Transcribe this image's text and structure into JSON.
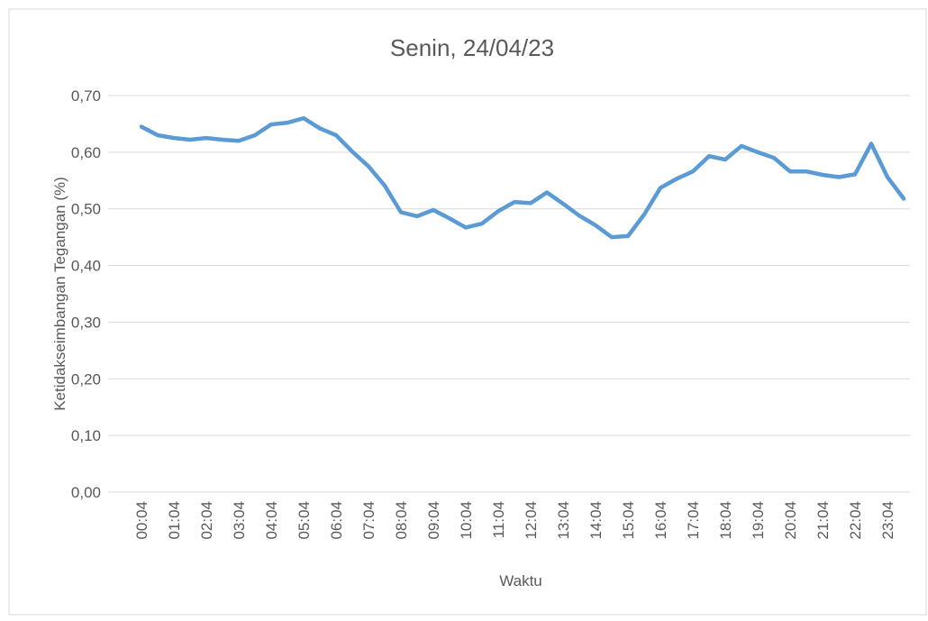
{
  "chart_data": {
    "type": "line",
    "title": "Senin, 24/04/23",
    "x_label": "Waktu",
    "y_label": "Ketidakseimbangan Tegangan (%)",
    "categories": [
      "00:04",
      null,
      "01:04",
      null,
      "02:04",
      null,
      "03:04",
      null,
      "04:04",
      null,
      "05:04",
      null,
      "06:04",
      null,
      "07:04",
      null,
      "08:04",
      null,
      "09:04",
      null,
      "10:04",
      null,
      "11:04",
      null,
      "12:04",
      null,
      "13:04",
      null,
      "14:04",
      null,
      "15:04",
      null,
      "16:04",
      null,
      "17:04",
      null,
      "18:04",
      null,
      "19:04",
      null,
      "20:04",
      null,
      "21:04",
      null,
      "22:04",
      null,
      "23:04",
      null
    ],
    "series": [
      {
        "name": "Ketidakseimbangan Tegangan",
        "color": "#5b9bd5",
        "values": [
          0.645,
          0.63,
          0.625,
          0.622,
          0.625,
          0.622,
          0.62,
          0.63,
          0.649,
          0.652,
          0.66,
          0.642,
          0.63,
          0.601,
          0.575,
          0.541,
          0.494,
          0.487,
          0.498,
          0.483,
          0.467,
          0.474,
          0.496,
          0.512,
          0.51,
          0.529,
          0.509,
          0.488,
          0.471,
          0.45,
          0.452,
          0.49,
          0.537,
          0.553,
          0.566,
          0.593,
          0.587,
          0.611,
          0.6,
          0.59,
          0.566,
          0.566,
          0.56,
          0.556,
          0.561,
          0.615,
          0.556,
          0.518
        ]
      }
    ],
    "ylim": [
      0,
      0.7
    ],
    "yticks": [
      {
        "value": 0,
        "label": "0,00"
      },
      {
        "value": 0.1,
        "label": "0,10"
      },
      {
        "value": 0.2,
        "label": "0,20"
      },
      {
        "value": 0.3,
        "label": "0,30"
      },
      {
        "value": 0.4,
        "label": "0,40"
      },
      {
        "value": 0.5,
        "label": "0,50"
      },
      {
        "value": 0.6,
        "label": "0,60"
      },
      {
        "value": 0.7,
        "label": "0,70"
      }
    ],
    "grid": true
  }
}
